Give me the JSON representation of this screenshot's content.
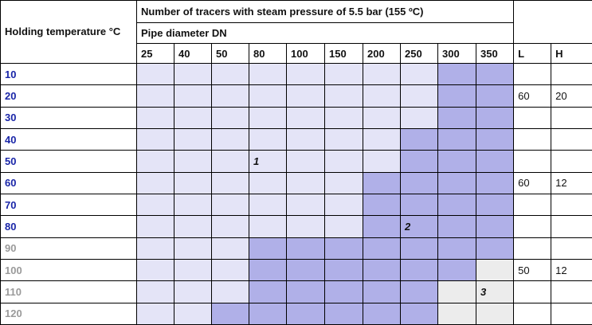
{
  "header": {
    "row_header": "Holding temperature °C",
    "title": "Number of tracers with steam pressure of 5.5 bar (155 ºC)",
    "subtitle": "Pipe diameter DN",
    "diameters": [
      "25",
      "40",
      "50",
      "80",
      "100",
      "150",
      "200",
      "250",
      "300",
      "350"
    ],
    "col_l": "L",
    "col_h": "H"
  },
  "rows": [
    {
      "temp": "10",
      "tone": "blue",
      "cells": [
        "light",
        "light",
        "light",
        "light",
        "light",
        "light",
        "light",
        "light",
        "dark",
        "dark"
      ],
      "l": "",
      "h": ""
    },
    {
      "temp": "20",
      "tone": "blue",
      "cells": [
        "light",
        "light",
        "light",
        "light",
        "light",
        "light",
        "light",
        "light",
        "dark",
        "dark"
      ],
      "l": "60",
      "h": "20"
    },
    {
      "temp": "30",
      "tone": "blue",
      "cells": [
        "light",
        "light",
        "light",
        "light",
        "light",
        "light",
        "light",
        "light",
        "dark",
        "dark"
      ],
      "l": "",
      "h": ""
    },
    {
      "temp": "40",
      "tone": "blue",
      "cells": [
        "light",
        "light",
        "light",
        "light",
        "light",
        "light",
        "light",
        "dark",
        "dark",
        "dark"
      ],
      "l": "",
      "h": ""
    },
    {
      "temp": "50",
      "tone": "blue",
      "cells": [
        "light",
        "light",
        "light",
        "light",
        "light",
        "light",
        "light",
        "dark",
        "dark",
        "dark"
      ],
      "l": "",
      "h": "",
      "marker": {
        "col": 3,
        "text": "1"
      }
    },
    {
      "temp": "60",
      "tone": "blue",
      "cells": [
        "light",
        "light",
        "light",
        "light",
        "light",
        "light",
        "dark",
        "dark",
        "dark",
        "dark"
      ],
      "l": "60",
      "h": "12"
    },
    {
      "temp": "70",
      "tone": "blue",
      "cells": [
        "light",
        "light",
        "light",
        "light",
        "light",
        "light",
        "dark",
        "dark",
        "dark",
        "dark"
      ],
      "l": "",
      "h": ""
    },
    {
      "temp": "80",
      "tone": "blue",
      "cells": [
        "light",
        "light",
        "light",
        "light",
        "light",
        "light",
        "dark",
        "dark",
        "dark",
        "dark"
      ],
      "l": "",
      "h": "",
      "marker": {
        "col": 7,
        "text": "2"
      }
    },
    {
      "temp": "90",
      "tone": "gray",
      "cells": [
        "light",
        "light",
        "light",
        "dark",
        "dark",
        "dark",
        "dark",
        "dark",
        "dark",
        "dark"
      ],
      "l": "",
      "h": ""
    },
    {
      "temp": "100",
      "tone": "gray",
      "cells": [
        "light",
        "light",
        "light",
        "dark",
        "dark",
        "dark",
        "dark",
        "dark",
        "dark",
        "grey"
      ],
      "l": "50",
      "h": "12"
    },
    {
      "temp": "110",
      "tone": "gray",
      "cells": [
        "light",
        "light",
        "light",
        "dark",
        "dark",
        "dark",
        "dark",
        "dark",
        "grey",
        "grey"
      ],
      "l": "",
      "h": "",
      "marker": {
        "col": 9,
        "text": "3"
      }
    },
    {
      "temp": "120",
      "tone": "gray",
      "cells": [
        "light",
        "light",
        "dark",
        "dark",
        "dark",
        "dark",
        "dark",
        "dark",
        "grey",
        "grey"
      ],
      "l": "",
      "h": ""
    }
  ],
  "colors": {
    "light": "#e4e4f7",
    "dark": "#b0b0e8",
    "grey": "#ececec",
    "temp_blue": "#1a26a8",
    "temp_gray": "#9a9a9a"
  }
}
